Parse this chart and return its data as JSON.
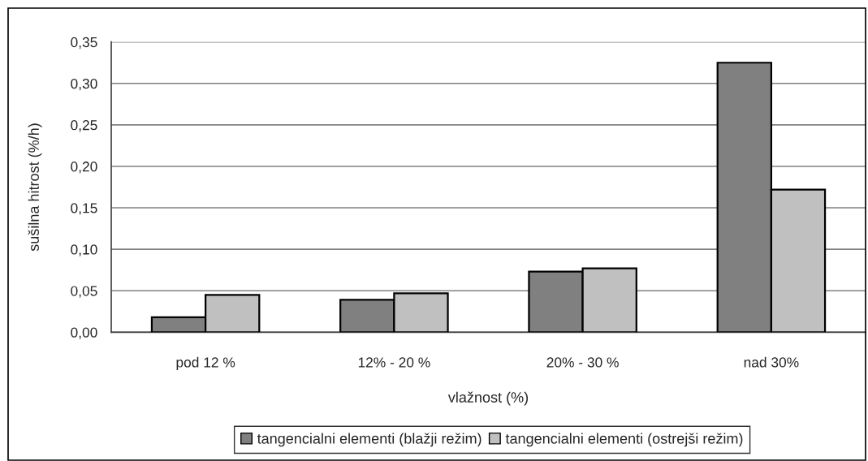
{
  "chart_data": {
    "type": "bar",
    "xlabel": "vlažnost (%)",
    "ylabel": "sušilna hitrost (%/h)",
    "categories": [
      "pod 12 %",
      "12% - 20 %",
      "20% - 30 %",
      "nad 30%"
    ],
    "series": [
      {
        "name": "tangencialni elementi (blažji režim)",
        "color": "#808080",
        "values": [
          0.018,
          0.039,
          0.073,
          0.325
        ]
      },
      {
        "name": "tangencialni elementi (ostrejši režim)",
        "color": "#c0c0c0",
        "values": [
          0.045,
          0.047,
          0.077,
          0.172
        ]
      }
    ],
    "ylim": [
      0,
      0.35
    ],
    "yticks": [
      {
        "value": 0,
        "label": "0,00"
      },
      {
        "value": 0.05,
        "label": "0,05"
      },
      {
        "value": 0.1,
        "label": "0,10"
      },
      {
        "value": 0.15,
        "label": "0,15"
      },
      {
        "value": 0.2,
        "label": "0,20"
      },
      {
        "value": 0.25,
        "label": "0,25"
      },
      {
        "value": 0.3,
        "label": "0,30"
      },
      {
        "value": 0.35,
        "label": "0,35"
      }
    ],
    "grid": "y",
    "legend": "bottom"
  }
}
